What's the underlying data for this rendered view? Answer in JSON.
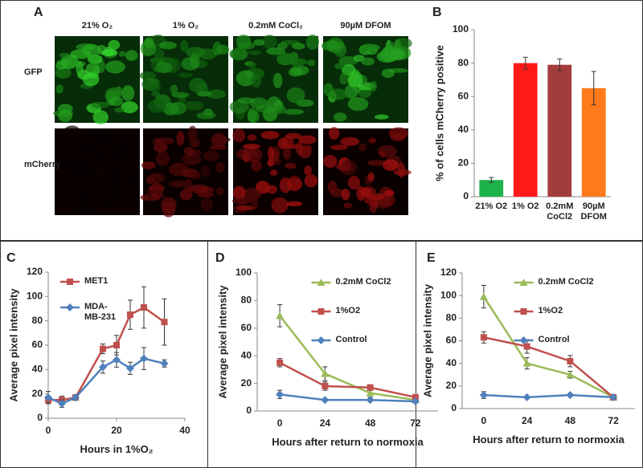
{
  "figure_a": {
    "label": "A",
    "columns": [
      "21% O₂",
      "1% O₂",
      "0.2mM CoCl₂",
      "90µM DFOM"
    ],
    "rows": [
      "GFP",
      "mCherry"
    ]
  },
  "chart_data": [
    {
      "type": "bar",
      "label": "B",
      "ylabel": "% of cells mCherry positive",
      "categories": [
        "21% O2",
        "1% O2",
        "0.2mM CoCl2",
        "90µM DFOM"
      ],
      "values": [
        10,
        80,
        79,
        65
      ],
      "errors": [
        1.5,
        3.5,
        3.5,
        10
      ],
      "colors": [
        "#1db34b",
        "#ff1a1a",
        "#a33c3c",
        "#ff7a1a"
      ],
      "ylim": [
        0,
        100
      ],
      "yticks": [
        0,
        20,
        40,
        60,
        80,
        100
      ],
      "grid": false
    },
    {
      "type": "line",
      "label": "C",
      "xlabel": "Hours in 1%O₂",
      "ylabel": "Average pixel intensity",
      "x": [
        0,
        4,
        8,
        16,
        20,
        24,
        28,
        34
      ],
      "series": [
        {
          "name": "MET1",
          "color": "#c0504d",
          "marker": "square",
          "values": [
            15,
            15,
            17,
            57,
            60,
            85,
            91,
            79
          ],
          "errors": [
            3,
            3,
            2,
            4,
            8,
            12,
            17,
            19
          ]
        },
        {
          "name": "MDA-MB-231",
          "color": "#4f81bd",
          "marker": "diamond",
          "values": [
            17,
            12,
            17,
            42,
            48,
            41,
            49,
            45
          ],
          "errors": [
            5,
            3,
            2,
            5,
            6,
            5,
            9,
            3
          ]
        }
      ],
      "xlim": [
        0,
        40
      ],
      "xticks": [
        0,
        20,
        40
      ],
      "ylim": [
        0,
        120
      ],
      "yticks": [
        0,
        20,
        40,
        60,
        80,
        100,
        120
      ],
      "legend": "upper left",
      "grid": false
    },
    {
      "type": "line",
      "label": "D",
      "xlabel": "Hours after return to normoxia",
      "ylabel": "Average pixel intensity",
      "categories": [
        "0",
        "24",
        "48",
        "72"
      ],
      "series": [
        {
          "name": "0.2mM CoCl2",
          "color": "#9bbb59",
          "marker": "triangle",
          "values": [
            69,
            27,
            13,
            8
          ],
          "errors": [
            8,
            5,
            3,
            2
          ]
        },
        {
          "name": "1%O2",
          "color": "#c0504d",
          "marker": "square",
          "values": [
            35,
            18,
            17,
            10
          ],
          "errors": [
            3,
            3,
            2,
            1
          ]
        },
        {
          "name": "Control",
          "color": "#4f81bd",
          "marker": "diamond",
          "values": [
            12,
            8,
            8,
            7
          ],
          "errors": [
            3,
            1,
            1,
            1
          ]
        }
      ],
      "ylim": [
        0,
        100
      ],
      "yticks": [
        0,
        20,
        40,
        60,
        80,
        100
      ],
      "legend": "upper right",
      "grid": false
    },
    {
      "type": "line",
      "label": "E",
      "xlabel": "Hours after return to normoxia",
      "ylabel": "Average pixel intensity",
      "categories": [
        "0",
        "24",
        "48",
        "72"
      ],
      "series": [
        {
          "name": "0.2mM CoCl2",
          "color": "#9bbb59",
          "marker": "triangle",
          "values": [
            99,
            40,
            30,
            10
          ],
          "errors": [
            10,
            5,
            3,
            2
          ]
        },
        {
          "name": "1%O2",
          "color": "#c0504d",
          "marker": "square",
          "values": [
            63,
            55,
            42,
            10
          ],
          "errors": [
            5,
            6,
            5,
            2
          ]
        },
        {
          "name": "Control",
          "color": "#4f81bd",
          "marker": "diamond",
          "values": [
            12,
            10,
            12,
            10
          ],
          "errors": [
            3,
            1,
            1,
            1
          ]
        }
      ],
      "ylim": [
        0,
        120
      ],
      "yticks": [
        0,
        20,
        40,
        60,
        80,
        100,
        120
      ],
      "legend": "upper right",
      "grid": false
    }
  ]
}
